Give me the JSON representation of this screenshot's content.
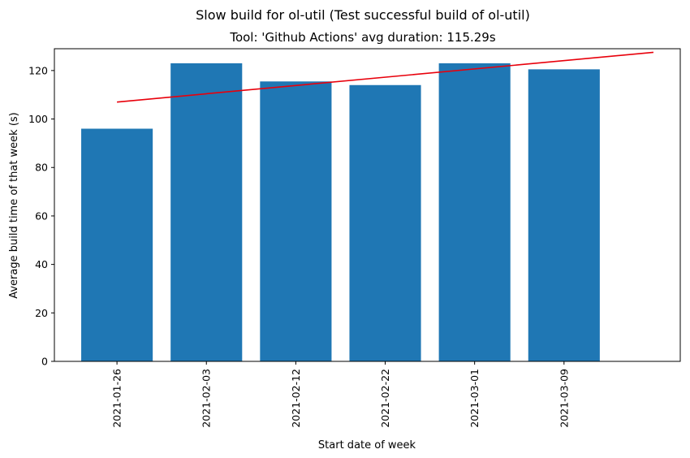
{
  "chart_data": {
    "type": "bar",
    "title": "Slow build for ol-util (Test successful build of ol-util)",
    "subtitle": "Tool: 'Github Actions' avg duration: 115.29s",
    "xlabel": "Start date of week",
    "ylabel": "Average build time of that week (s)",
    "categories": [
      "2021-01-26",
      "2021-02-03",
      "2021-02-12",
      "2021-02-22",
      "2021-03-01",
      "2021-03-09"
    ],
    "values": [
      96,
      123,
      115.5,
      114,
      123,
      120.5
    ],
    "ylim": [
      0,
      129
    ],
    "yticks": [
      0,
      20,
      40,
      60,
      80,
      100,
      120
    ],
    "bar_color": "#1f77b4",
    "trend_line": {
      "color": "#e8000b",
      "start": {
        "category_index": 0,
        "value": 107
      },
      "end": {
        "category_index": 6,
        "value": 127.5
      }
    },
    "grid": false,
    "legend": "none"
  }
}
